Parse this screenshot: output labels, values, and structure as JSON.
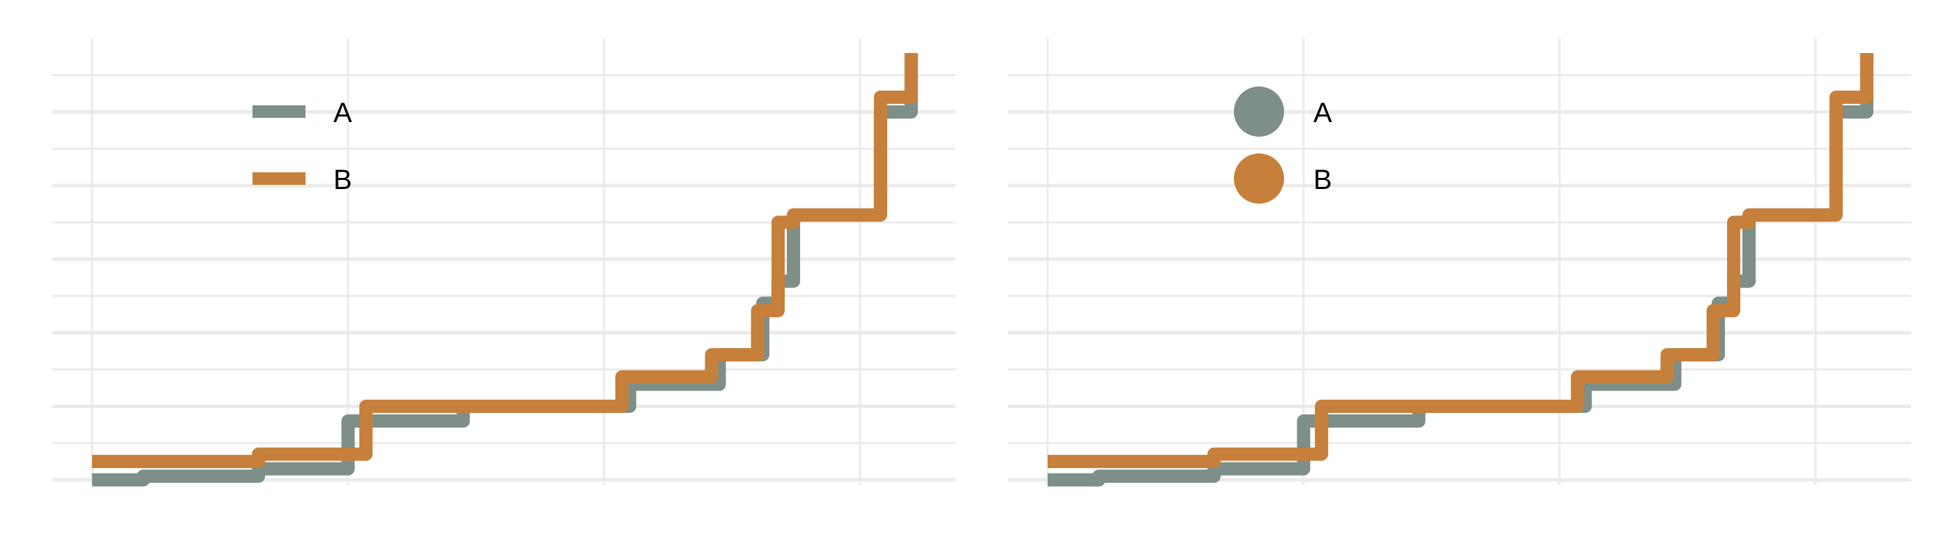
{
  "colors": {
    "A": "#7d8f87",
    "B": "#c6803b",
    "grid": "#ebebeb",
    "background": "#ffffff"
  },
  "chart_data": [
    {
      "type": "line",
      "variant": "step",
      "legend_style": "line",
      "legend_position": "top-left",
      "grid": true,
      "xlim": [
        0,
        3.5
      ],
      "ylim": [
        0,
        5.9
      ],
      "series": [
        {
          "name": "A",
          "color": "#7d8f87",
          "x": [
            0.0,
            0.2,
            0.65,
            1.0,
            1.45,
            2.1,
            2.45,
            2.62,
            2.68,
            2.74,
            3.08,
            3.2
          ],
          "y": [
            0.0,
            0.05,
            0.15,
            0.8,
            1.0,
            1.3,
            1.7,
            2.4,
            2.7,
            3.6,
            5.0,
            5.8
          ]
        },
        {
          "name": "B",
          "color": "#c6803b",
          "x": [
            0.0,
            0.65,
            1.07,
            2.07,
            2.42,
            2.6,
            2.68,
            2.74,
            3.08,
            3.2
          ],
          "y": [
            0.25,
            0.35,
            1.0,
            1.4,
            1.7,
            2.3,
            3.5,
            3.6,
            5.2,
            5.8
          ]
        }
      ]
    },
    {
      "type": "line",
      "variant": "step",
      "legend_style": "point",
      "legend_position": "top-left",
      "grid": true,
      "xlim": [
        0,
        3.5
      ],
      "ylim": [
        0,
        5.9
      ],
      "series": [
        {
          "name": "A",
          "color": "#7d8f87",
          "x": [
            0.0,
            0.2,
            0.65,
            1.0,
            1.45,
            2.1,
            2.45,
            2.62,
            2.68,
            2.74,
            3.08,
            3.2
          ],
          "y": [
            0.0,
            0.05,
            0.15,
            0.8,
            1.0,
            1.3,
            1.7,
            2.4,
            2.7,
            3.6,
            5.0,
            5.8
          ]
        },
        {
          "name": "B",
          "color": "#c6803b",
          "x": [
            0.0,
            0.65,
            1.07,
            2.07,
            2.42,
            2.6,
            2.68,
            2.74,
            3.08,
            3.2
          ],
          "y": [
            0.25,
            0.35,
            1.0,
            1.4,
            1.7,
            2.3,
            3.5,
            3.6,
            5.2,
            5.8
          ]
        }
      ]
    }
  ]
}
